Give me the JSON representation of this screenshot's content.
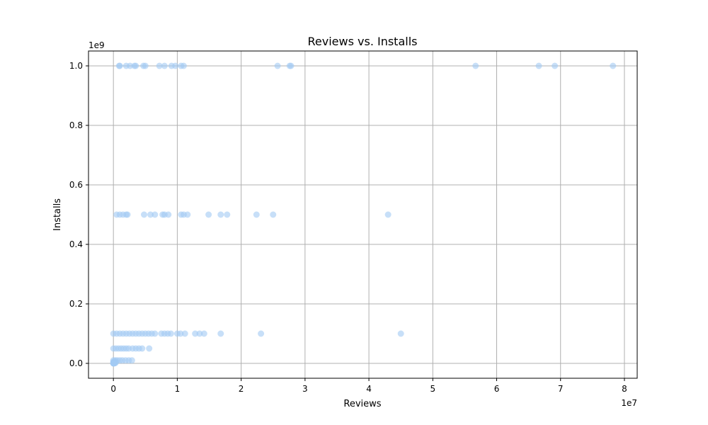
{
  "chart_data": {
    "type": "scatter",
    "title": "Reviews vs. Installs",
    "xlabel": "Reviews",
    "ylabel": "Installs",
    "x_offset_label": "1e7",
    "y_offset_label": "1e9",
    "xlim": [
      -3900000,
      82000000
    ],
    "ylim": [
      -50000000,
      1050000000
    ],
    "x_ticks": [
      0,
      10000000,
      20000000,
      30000000,
      40000000,
      50000000,
      60000000,
      70000000,
      80000000
    ],
    "x_tick_labels": [
      "0",
      "1",
      "2",
      "3",
      "4",
      "5",
      "6",
      "7",
      "8"
    ],
    "y_ticks": [
      0,
      200000000,
      400000000,
      600000000,
      800000000,
      1000000000
    ],
    "y_tick_labels": [
      "0.0",
      "0.2",
      "0.4",
      "0.6",
      "0.8",
      "1.0"
    ],
    "grid": true,
    "point_color": "#a1c9f4",
    "series": [
      {
        "points": [
          [
            900000,
            1000000000
          ],
          [
            1000000,
            1000000000
          ],
          [
            2000000,
            1000000000
          ],
          [
            2600000,
            1000000000
          ],
          [
            3300000,
            1000000000
          ],
          [
            3500000,
            1000000000
          ],
          [
            4700000,
            1000000000
          ],
          [
            5000000,
            1000000000
          ],
          [
            7200000,
            1000000000
          ],
          [
            8000000,
            1000000000
          ],
          [
            9100000,
            1000000000
          ],
          [
            9700000,
            1000000000
          ],
          [
            10600000,
            1000000000
          ],
          [
            11000000,
            1000000000
          ],
          [
            25700000,
            1000000000
          ],
          [
            27600000,
            1000000000
          ],
          [
            27800000,
            1000000000
          ],
          [
            56700000,
            1000000000
          ],
          [
            66600000,
            1000000000
          ],
          [
            69100000,
            1000000000
          ],
          [
            78200000,
            1000000000
          ],
          [
            500000,
            500000000
          ],
          [
            1000000,
            500000000
          ],
          [
            1500000,
            500000000
          ],
          [
            2000000,
            500000000
          ],
          [
            2200000,
            500000000
          ],
          [
            4800000,
            500000000
          ],
          [
            5800000,
            500000000
          ],
          [
            6500000,
            500000000
          ],
          [
            7700000,
            500000000
          ],
          [
            8000000,
            500000000
          ],
          [
            8600000,
            500000000
          ],
          [
            10600000,
            500000000
          ],
          [
            11000000,
            500000000
          ],
          [
            11600000,
            500000000
          ],
          [
            14900000,
            500000000
          ],
          [
            16800000,
            500000000
          ],
          [
            17800000,
            500000000
          ],
          [
            22400000,
            500000000
          ],
          [
            25000000,
            500000000
          ],
          [
            43000000,
            500000000
          ],
          [
            0,
            100000000
          ],
          [
            500000,
            100000000
          ],
          [
            1000000,
            100000000
          ],
          [
            1500000,
            100000000
          ],
          [
            2000000,
            100000000
          ],
          [
            2500000,
            100000000
          ],
          [
            3000000,
            100000000
          ],
          [
            3500000,
            100000000
          ],
          [
            4000000,
            100000000
          ],
          [
            4500000,
            100000000
          ],
          [
            5000000,
            100000000
          ],
          [
            5500000,
            100000000
          ],
          [
            6000000,
            100000000
          ],
          [
            6500000,
            100000000
          ],
          [
            7500000,
            100000000
          ],
          [
            8000000,
            100000000
          ],
          [
            8500000,
            100000000
          ],
          [
            9000000,
            100000000
          ],
          [
            10000000,
            100000000
          ],
          [
            10500000,
            100000000
          ],
          [
            11200000,
            100000000
          ],
          [
            12800000,
            100000000
          ],
          [
            13500000,
            100000000
          ],
          [
            14200000,
            100000000
          ],
          [
            16800000,
            100000000
          ],
          [
            23100000,
            100000000
          ],
          [
            45000000,
            100000000
          ],
          [
            0,
            50000000
          ],
          [
            400000,
            50000000
          ],
          [
            800000,
            50000000
          ],
          [
            1200000,
            50000000
          ],
          [
            1600000,
            50000000
          ],
          [
            2000000,
            50000000
          ],
          [
            2400000,
            50000000
          ],
          [
            3000000,
            50000000
          ],
          [
            3500000,
            50000000
          ],
          [
            4000000,
            50000000
          ],
          [
            4500000,
            50000000
          ],
          [
            5600000,
            50000000
          ],
          [
            0,
            10000000
          ],
          [
            300000,
            10000000
          ],
          [
            600000,
            10000000
          ],
          [
            1000000,
            10000000
          ],
          [
            1400000,
            10000000
          ],
          [
            1900000,
            10000000
          ],
          [
            2400000,
            10000000
          ],
          [
            2900000,
            10000000
          ],
          [
            0,
            5000000
          ],
          [
            100000,
            5000000
          ],
          [
            200000,
            5000000
          ],
          [
            400000,
            5000000
          ],
          [
            0,
            1000000
          ],
          [
            50000,
            1000000
          ],
          [
            150000,
            1000000
          ],
          [
            300000,
            1000000
          ],
          [
            0,
            500000
          ],
          [
            100000,
            500000
          ],
          [
            0,
            100000
          ],
          [
            50000,
            100000
          ],
          [
            0,
            0
          ]
        ]
      }
    ]
  }
}
